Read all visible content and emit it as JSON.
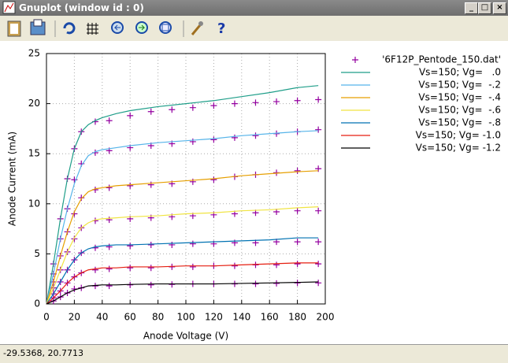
{
  "window": {
    "title": "Gnuplot (window id : 0)",
    "status": "-29.5368,  20.7713"
  },
  "chart_data": {
    "type": "line",
    "xlabel": "Anode Voltage (V)",
    "ylabel": "Anode Current (mA)",
    "xlim": [
      0,
      200
    ],
    "ylim": [
      0,
      25
    ],
    "xticks": [
      0,
      20,
      40,
      60,
      80,
      100,
      120,
      140,
      160,
      180,
      200
    ],
    "yticks": [
      0,
      5,
      10,
      15,
      20,
      25
    ],
    "grid": true,
    "legend": "outside-right",
    "x": [
      0,
      5,
      10,
      15,
      20,
      25,
      30,
      35,
      40,
      50,
      60,
      80,
      100,
      120,
      140,
      160,
      180,
      195
    ],
    "series": [
      {
        "name": "'6F12P_Pentode_150.dat'",
        "type": "scatter",
        "color": "#9400a0",
        "x": [
          5,
          10,
          15,
          20,
          25,
          35,
          45,
          60,
          75,
          90,
          105,
          120,
          135,
          150,
          165,
          180,
          195,
          5,
          10,
          15,
          20,
          25,
          35,
          45,
          60,
          75,
          90,
          105,
          120,
          135,
          150,
          165,
          180,
          195,
          5,
          10,
          15,
          20,
          25,
          35,
          45,
          60,
          75,
          90,
          105,
          120,
          135,
          150,
          165,
          180,
          195,
          5,
          10,
          15,
          20,
          25,
          35,
          45,
          60,
          75,
          90,
          105,
          120,
          135,
          150,
          165,
          180,
          195,
          5,
          10,
          15,
          20,
          25,
          35,
          45,
          60,
          75,
          90,
          105,
          120,
          135,
          150,
          165,
          180,
          195,
          5,
          10,
          15,
          20,
          25,
          35,
          45,
          60,
          75,
          90,
          105,
          120,
          135,
          150,
          165,
          180,
          195,
          5,
          10,
          15,
          20,
          25,
          35,
          45,
          60,
          75,
          90,
          105,
          120,
          135,
          150,
          165,
          180,
          195
        ],
        "values": [
          4,
          8.5,
          12.5,
          15.5,
          17.2,
          18.2,
          18.3,
          18.8,
          19.2,
          19.4,
          19.6,
          19.8,
          20,
          20.1,
          20.2,
          20.3,
          20.4,
          3,
          6.5,
          9.5,
          12.4,
          14,
          15.1,
          15.3,
          15.6,
          15.8,
          16,
          16.2,
          16.4,
          16.6,
          16.8,
          17,
          17.2,
          17.4,
          2.2,
          4.8,
          7.2,
          9,
          10.6,
          11.4,
          11.6,
          11.8,
          11.9,
          12,
          12.2,
          12.4,
          12.7,
          12.9,
          13.1,
          13.3,
          13.5,
          1.6,
          3.4,
          5.2,
          6.5,
          7.6,
          8.3,
          8.4,
          8.5,
          8.6,
          8.7,
          8.8,
          8.9,
          9,
          9.1,
          9.2,
          9.3,
          9.3,
          1,
          2.2,
          3.4,
          4.4,
          5.1,
          5.6,
          5.7,
          5.8,
          5.9,
          5.9,
          6,
          6,
          6.1,
          6.1,
          6.2,
          6.2,
          6.2,
          0.6,
          1.3,
          2.1,
          2.7,
          3.1,
          3.4,
          3.5,
          3.6,
          3.6,
          3.7,
          3.7,
          3.8,
          3.8,
          3.9,
          3.9,
          4,
          4,
          0.3,
          0.7,
          1.1,
          1.5,
          1.6,
          1.8,
          1.8,
          1.9,
          1.9,
          1.95,
          2,
          2,
          2,
          2,
          2.05,
          2.1,
          2.1
        ]
      },
      {
        "name": "Vs=150; Vg=   .0",
        "color": "#1f9e89",
        "values": [
          0,
          4,
          8.5,
          12.5,
          15.5,
          17.2,
          17.9,
          18.3,
          18.6,
          19,
          19.3,
          19.7,
          20,
          20.3,
          20.7,
          21.1,
          21.6,
          21.8
        ]
      },
      {
        "name": "Vs=150; Vg=  -.2",
        "color": "#56b4e9",
        "values": [
          0,
          3,
          6.5,
          9.5,
          12,
          13.8,
          14.8,
          15.2,
          15.4,
          15.6,
          15.8,
          16.1,
          16.3,
          16.5,
          16.8,
          17,
          17.2,
          17.3
        ]
      },
      {
        "name": "Vs=150; Vg=  -.4",
        "color": "#e69f00",
        "values": [
          0,
          2.2,
          4.8,
          7.2,
          9.2,
          10.5,
          11.2,
          11.5,
          11.6,
          11.8,
          11.9,
          12.1,
          12.3,
          12.5,
          12.8,
          13,
          13.2,
          13.3
        ]
      },
      {
        "name": "Vs=150; Vg=  -.6",
        "color": "#f0e442",
        "values": [
          0,
          1.6,
          3.4,
          5.2,
          6.6,
          7.6,
          8.1,
          8.4,
          8.5,
          8.6,
          8.7,
          8.8,
          9,
          9.1,
          9.3,
          9.4,
          9.6,
          9.7
        ]
      },
      {
        "name": "Vs=150; Vg=  -.8",
        "color": "#0072b2",
        "values": [
          0,
          1,
          2.2,
          3.4,
          4.4,
          5.1,
          5.5,
          5.7,
          5.8,
          5.9,
          5.9,
          6,
          6.1,
          6.2,
          6.3,
          6.4,
          6.6,
          6.6
        ]
      },
      {
        "name": "Vs=150; Vg= -1.0",
        "color": "#e51e10",
        "values": [
          0,
          0.6,
          1.3,
          2.1,
          2.7,
          3.1,
          3.4,
          3.5,
          3.6,
          3.6,
          3.7,
          3.7,
          3.8,
          3.8,
          3.9,
          4,
          4.1,
          4.1
        ]
      },
      {
        "name": "Vs=150; Vg= -1.2",
        "color": "#000000",
        "values": [
          0,
          0.3,
          0.7,
          1.1,
          1.4,
          1.6,
          1.8,
          1.85,
          1.9,
          1.9,
          1.95,
          2,
          2,
          2,
          2.05,
          2.1,
          2.15,
          2.2
        ]
      }
    ]
  }
}
